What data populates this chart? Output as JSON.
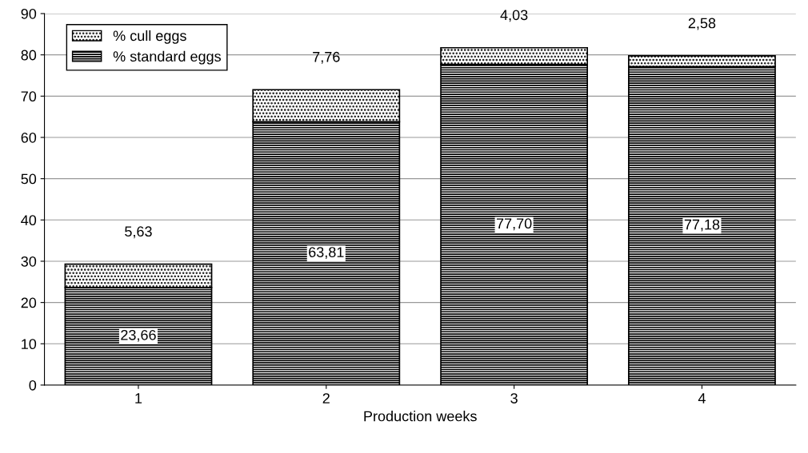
{
  "chart_data": {
    "type": "bar",
    "stacked": true,
    "xlabel": "Production weeks",
    "categories": [
      "1",
      "2",
      "3",
      "4"
    ],
    "series": [
      {
        "name": "% standard eggs",
        "color": "#000000",
        "values": [
          23.66,
          63.81,
          77.7,
          77.18
        ],
        "value_labels": [
          "23,66",
          "63,81",
          "77,70",
          "77,18"
        ]
      },
      {
        "name": "% cull eggs",
        "color": "#000000",
        "values": [
          5.63,
          7.76,
          4.03,
          2.58
        ],
        "value_labels": [
          "5,63",
          "7,76",
          "4,03",
          "2,58"
        ]
      }
    ],
    "ylim": [
      0,
      90
    ],
    "yticks": [
      0,
      10,
      20,
      30,
      40,
      50,
      60,
      70,
      80,
      90
    ],
    "grid": "y",
    "legend": "top left"
  }
}
